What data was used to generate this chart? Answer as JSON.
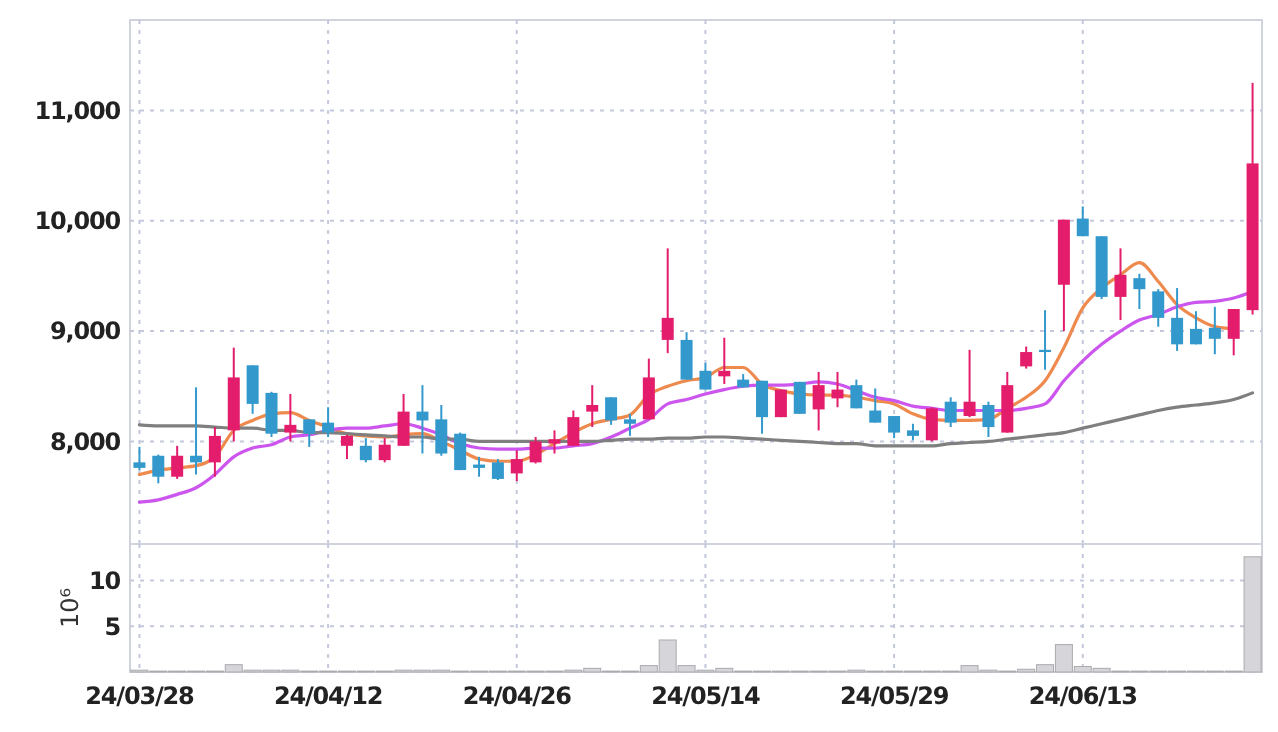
{
  "chart_data": [
    {
      "type": "candlestick",
      "tick_labels": "y",
      "grid": true,
      "categories": [
        null,
        null,
        null,
        null,
        null,
        null,
        null,
        null,
        null,
        null,
        null,
        null,
        null,
        null,
        null,
        null,
        null,
        null,
        null,
        null,
        null,
        null,
        null,
        null,
        null,
        null,
        null,
        null,
        null,
        null,
        null,
        null,
        null,
        null,
        null,
        null,
        null,
        null,
        null,
        null,
        null,
        null,
        null,
        null,
        null,
        null,
        null,
        null,
        null,
        null,
        null,
        null,
        null,
        null,
        null,
        null,
        null,
        null,
        null,
        null
      ],
      "ohlc": [
        [
          7810,
          7950,
          7740,
          7760
        ],
        [
          7870,
          7880,
          7620,
          7680
        ],
        [
          7680,
          7960,
          7660,
          7870
        ],
        [
          7870,
          8490,
          7700,
          7810
        ],
        [
          7810,
          8130,
          7680,
          8050
        ],
        [
          8100,
          8850,
          8000,
          8580
        ],
        [
          8690,
          8690,
          8250,
          8340
        ],
        [
          8440,
          8450,
          8040,
          8070
        ],
        [
          8080,
          8430,
          8000,
          8150
        ],
        [
          8200,
          8200,
          7950,
          8070
        ],
        [
          8170,
          8310,
          8040,
          8080
        ],
        [
          7960,
          8060,
          7840,
          8050
        ],
        [
          7960,
          8030,
          7810,
          7830
        ],
        [
          7830,
          8030,
          7810,
          7970
        ],
        [
          7960,
          8430,
          7960,
          8270
        ],
        [
          8270,
          8510,
          7890,
          8190
        ],
        [
          8200,
          8330,
          7870,
          7890
        ],
        [
          8070,
          8080,
          7740,
          7740
        ],
        [
          7790,
          7860,
          7680,
          7760
        ],
        [
          7810,
          7840,
          7650,
          7660
        ],
        [
          7710,
          7920,
          7640,
          7840
        ],
        [
          7810,
          8040,
          7800,
          8000
        ],
        [
          7980,
          8100,
          7890,
          8020
        ],
        [
          7960,
          8280,
          7960,
          8220
        ],
        [
          8270,
          8510,
          8130,
          8330
        ],
        [
          8400,
          8400,
          8150,
          8190
        ],
        [
          8200,
          8250,
          8050,
          8160
        ],
        [
          8200,
          8750,
          8200,
          8580
        ],
        [
          8920,
          9750,
          8800,
          9120
        ],
        [
          8920,
          8990,
          8560,
          8560
        ],
        [
          8640,
          8710,
          8470,
          8470
        ],
        [
          8590,
          8940,
          8520,
          8640
        ],
        [
          8560,
          8610,
          8490,
          8490
        ],
        [
          8550,
          8550,
          8070,
          8220
        ],
        [
          8220,
          8470,
          8220,
          8470
        ],
        [
          8540,
          8540,
          8250,
          8250
        ],
        [
          8290,
          8630,
          8100,
          8510
        ],
        [
          8390,
          8630,
          8310,
          8470
        ],
        [
          8510,
          8560,
          8300,
          8300
        ],
        [
          8280,
          8480,
          8170,
          8170
        ],
        [
          8230,
          8230,
          8030,
          8080
        ],
        [
          8100,
          8160,
          8010,
          8050
        ],
        [
          8010,
          8310,
          8000,
          8300
        ],
        [
          8360,
          8400,
          8130,
          8170
        ],
        [
          8230,
          8830,
          8220,
          8360
        ],
        [
          8330,
          8360,
          8040,
          8130
        ],
        [
          8080,
          8630,
          8080,
          8510
        ],
        [
          8680,
          8860,
          8660,
          8810
        ],
        [
          8830,
          9190,
          8650,
          8810
        ],
        [
          9420,
          10010,
          9000,
          10010
        ],
        [
          10020,
          10130,
          9860,
          9860
        ],
        [
          9860,
          9860,
          9290,
          9310
        ],
        [
          9310,
          9750,
          9100,
          9510
        ],
        [
          9480,
          9520,
          9200,
          9380
        ],
        [
          9360,
          9380,
          9040,
          9120
        ],
        [
          9120,
          9390,
          8820,
          8880
        ],
        [
          9020,
          9180,
          8880,
          8880
        ],
        [
          9030,
          9220,
          8790,
          8930
        ],
        [
          8930,
          9200,
          8780,
          9200
        ],
        [
          9190,
          11250,
          9150,
          10520
        ]
      ],
      "colors": [
        "#3399cc",
        "#3399cc",
        "#e31c6b",
        "#3399cc",
        "#e31c6b",
        "#e31c6b",
        "#3399cc",
        "#3399cc",
        "#e31c6b",
        "#3399cc",
        "#3399cc",
        "#e31c6b",
        "#3399cc",
        "#e31c6b",
        "#e31c6b",
        "#3399cc",
        "#3399cc",
        "#3399cc",
        "#3399cc",
        "#3399cc",
        "#e31c6b",
        "#e31c6b",
        "#e31c6b",
        "#e31c6b",
        "#e31c6b",
        "#3399cc",
        "#3399cc",
        "#e31c6b",
        "#e31c6b",
        "#3399cc",
        "#3399cc",
        "#e31c6b",
        "#3399cc",
        "#3399cc",
        "#e31c6b",
        "#3399cc",
        "#e31c6b",
        "#e31c6b",
        "#3399cc",
        "#3399cc",
        "#3399cc",
        "#3399cc",
        "#e31c6b",
        "#3399cc",
        "#e31c6b",
        "#3399cc",
        "#e31c6b",
        "#e31c6b",
        "#3399cc",
        "#e31c6b",
        "#3399cc",
        "#3399cc",
        "#e31c6b",
        "#3399cc",
        "#3399cc",
        "#3399cc",
        "#3399cc",
        "#3399cc",
        "#e31c6b",
        "#e31c6b"
      ],
      "series": [
        {
          "type": "line",
          "color": "#ee8a4e",
          "values": [
            7700,
            7740,
            7760,
            7780,
            7860,
            8100,
            8190,
            8250,
            8260,
            8190,
            8130,
            8070,
            8050,
            8040,
            8060,
            8070,
            8000,
            7920,
            7840,
            7820,
            7820,
            7880,
            7980,
            8080,
            8160,
            8200,
            8240,
            8420,
            8500,
            8550,
            8580,
            8670,
            8670,
            8520,
            8460,
            8430,
            8420,
            8420,
            8400,
            8370,
            8340,
            8250,
            8200,
            8190,
            8190,
            8200,
            8300,
            8400,
            8550,
            8850,
            9210,
            9390,
            9510,
            9620,
            9450,
            9240,
            9120,
            9040,
            9020,
            null
          ]
        },
        {
          "type": "line",
          "color": "#cc55ee",
          "values": [
            7450,
            7470,
            7520,
            7580,
            7700,
            7860,
            7940,
            7970,
            8040,
            8060,
            8100,
            8120,
            8120,
            8140,
            8160,
            8120,
            8060,
            7980,
            7940,
            7930,
            7930,
            7940,
            7940,
            7960,
            7980,
            8040,
            8120,
            8200,
            8340,
            8380,
            8430,
            8470,
            8500,
            8510,
            8510,
            8520,
            8540,
            8520,
            8460,
            8400,
            8370,
            8320,
            8300,
            8280,
            8280,
            8280,
            8280,
            8300,
            8340,
            8550,
            8730,
            8880,
            9000,
            9100,
            9150,
            9220,
            9260,
            9270,
            9300,
            9360
          ]
        },
        {
          "type": "line",
          "color": "#7f7f7f",
          "values": [
            8150,
            8140,
            8140,
            8140,
            8130,
            8120,
            8120,
            8100,
            8100,
            8080,
            8080,
            8070,
            8060,
            8050,
            8040,
            8040,
            8020,
            8020,
            8000,
            8000,
            8000,
            8000,
            8000,
            8000,
            8000,
            8010,
            8020,
            8020,
            8030,
            8030,
            8040,
            8040,
            8030,
            8020,
            8010,
            8000,
            7990,
            7980,
            7980,
            7960,
            7960,
            7960,
            7960,
            7980,
            7990,
            8000,
            8020,
            8040,
            8060,
            8080,
            8120,
            8160,
            8200,
            8240,
            8280,
            8310,
            8330,
            8350,
            8380,
            8440
          ]
        }
      ],
      "ylim": [
        7070,
        11820
      ],
      "yticks": [
        {
          "value": 8000,
          "label": "8,000"
        },
        {
          "value": 9000,
          "label": "9,000"
        },
        {
          "value": 10000,
          "label": "10,000"
        },
        {
          "value": 11000,
          "label": "11,000"
        }
      ]
    },
    {
      "type": "bar",
      "grid": true,
      "ylabel": "10⁶",
      "color": "#d6d6da",
      "categories": [
        "24/03/28",
        null,
        null,
        null,
        null,
        null,
        null,
        null,
        null,
        null,
        "24/04/12",
        null,
        null,
        null,
        null,
        null,
        null,
        null,
        null,
        null,
        "24/04/26",
        null,
        null,
        null,
        null,
        null,
        null,
        null,
        null,
        null,
        "24/05/14",
        null,
        null,
        null,
        null,
        null,
        null,
        null,
        null,
        null,
        "24/05/29",
        null,
        null,
        null,
        null,
        null,
        null,
        null,
        null,
        null,
        "24/06/13",
        null,
        null,
        null,
        null,
        null,
        null,
        null,
        null,
        null
      ],
      "values": [
        0.2,
        0.1,
        0.1,
        0.1,
        0.1,
        0.8,
        0.2,
        0.2,
        0.2,
        0.1,
        0.1,
        0.1,
        0.1,
        0.1,
        0.2,
        0.2,
        0.2,
        0.1,
        0.1,
        0.1,
        0.1,
        0.1,
        0.1,
        0.2,
        0.4,
        0.1,
        0.1,
        0.7,
        3.5,
        0.7,
        0.2,
        0.4,
        0.1,
        0.1,
        0.1,
        0.1,
        0.1,
        0.1,
        0.2,
        0.1,
        0.1,
        0.1,
        0.1,
        0.1,
        0.7,
        0.2,
        0.1,
        0.3,
        0.8,
        3.0,
        0.6,
        0.4,
        0.1,
        0.1,
        0.1,
        0.1,
        0.1,
        0.1,
        0.1,
        12.6
      ],
      "ylim": [
        0,
        14
      ],
      "yticks": [
        5,
        10
      ]
    }
  ]
}
